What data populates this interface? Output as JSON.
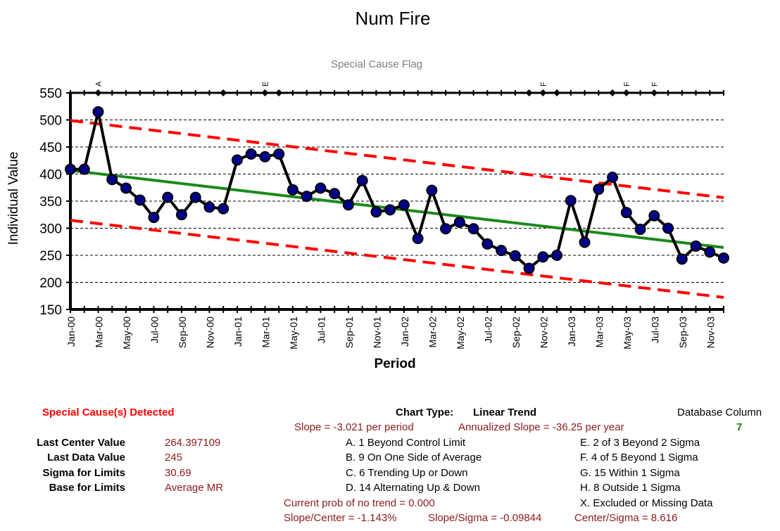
{
  "chart_data": {
    "type": "line",
    "title": "Num Fire",
    "subtitle": "Special Cause Flag",
    "xlabel": "Period",
    "ylabel": "Individual Value",
    "ylim": [
      150,
      550
    ],
    "yticks": [
      150,
      200,
      250,
      300,
      350,
      400,
      450,
      500,
      550
    ],
    "grid": true,
    "xtick_labels": [
      "Jan-00",
      "Mar-00",
      "May-00",
      "Jul-00",
      "Sep-00",
      "Nov-00",
      "Jan-01",
      "Mar-01",
      "May-01",
      "Jul-01",
      "Sep-01",
      "Nov-01",
      "Jan-02",
      "Mar-02",
      "May-02",
      "Jul-02",
      "Sep-02",
      "Nov-02",
      "Jan-03",
      "Mar-03",
      "May-03",
      "Jul-03",
      "Sep-03",
      "Nov-03"
    ],
    "series": [
      {
        "values": [
          409,
          409,
          515,
          390,
          374,
          352,
          320,
          357,
          325,
          357,
          339,
          336,
          426,
          437,
          432,
          437,
          371,
          359,
          374,
          364,
          343,
          388,
          330,
          334,
          343,
          281,
          370,
          299,
          311,
          299,
          271,
          259,
          249,
          226,
          247,
          250,
          351,
          274,
          372,
          394,
          329,
          298,
          323,
          300,
          243,
          267,
          256,
          245
        ],
        "color": "#000000",
        "marker_color": "#00008b"
      },
      {
        "start": 406.8,
        "end": 264.4,
        "color": "#1a8a1a"
      },
      {
        "start": 498.9,
        "end": 356.5,
        "color": "#ff0000",
        "dashed": true
      },
      {
        "start": 314.7,
        "end": 172.3,
        "color": "#ff0000",
        "dashed": true
      }
    ],
    "flags": [
      {
        "index": 2,
        "label": "A"
      },
      {
        "index": 14,
        "label": "E"
      },
      {
        "index": 34,
        "label": "F"
      },
      {
        "index": 40,
        "label": "F"
      },
      {
        "index": 42,
        "label": "F"
      }
    ],
    "flag_markers": [
      2,
      11,
      14,
      15,
      33,
      34,
      35,
      39,
      40,
      42
    ]
  },
  "summary": {
    "detected": "Special Cause(s) Detected",
    "chart_type_label": "Chart Type:",
    "chart_type_value": "Linear Trend",
    "db_label": "Database Column",
    "db_value": "7",
    "slope": "Slope = -3.021 per period",
    "annualized": "Annualized Slope = -36.25 per year",
    "stats": [
      {
        "label": "Last Center Value",
        "value": "264.397109"
      },
      {
        "label": "Last Data Value",
        "value": "245"
      },
      {
        "label": "Sigma for Limits",
        "value": "30.69"
      },
      {
        "label": "Base for Limits",
        "value": "Average MR"
      }
    ],
    "rules_left": [
      "A.  1 Beyond Control Limit",
      "B.  9 On One Side of Average",
      "C.  6 Trending Up or Down",
      "D.  14 Alternating  Up & Down"
    ],
    "rules_right": [
      "E.   2 of 3 Beyond 2 Sigma",
      "F.   4 of 5 Beyond 1 Sigma",
      "G.   15 Within 1 Sigma",
      "H.   8 Outside 1 Sigma",
      "X.   Excluded or Missing Data"
    ],
    "prob": "Current prob of no trend = 0.000",
    "slope_center": "Slope/Center = -1.143%",
    "slope_sigma": "Slope/Sigma = -0.09844",
    "center_sigma": "Center/Sigma = 8.616"
  }
}
